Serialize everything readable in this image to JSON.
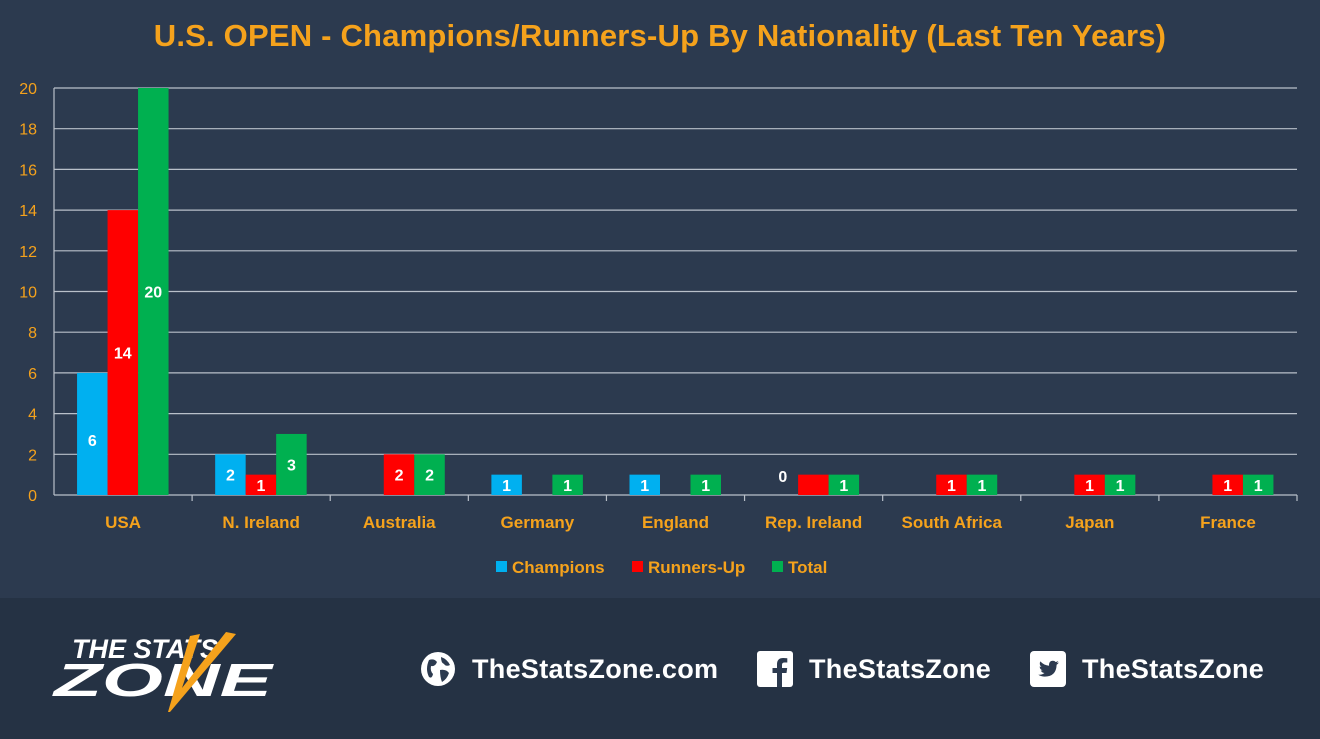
{
  "title": "U.S. OPEN - Champions/Runners-Up By Nationality (Last Ten Years)",
  "chart_data": {
    "type": "bar",
    "categories": [
      "USA",
      "N. Ireland",
      "Australia",
      "Germany",
      "England",
      "Rep. Ireland",
      "South Africa",
      "Japan",
      "France"
    ],
    "series": [
      {
        "name": "Champions",
        "color": "#00b0f0",
        "values": [
          6,
          2,
          null,
          1,
          1,
          0,
          null,
          null,
          null
        ],
        "labels": [
          "6",
          "2",
          "",
          "1",
          "1",
          "0",
          "",
          "",
          ""
        ]
      },
      {
        "name": "Runners-Up",
        "color": "#ff0000",
        "values": [
          14,
          1,
          2,
          null,
          null,
          1,
          1,
          1,
          1
        ],
        "labels": [
          "14",
          "1",
          "2",
          "",
          "",
          "",
          "1",
          "1",
          "1"
        ]
      },
      {
        "name": "Total",
        "color": "#00b050",
        "values": [
          20,
          3,
          2,
          1,
          1,
          1,
          1,
          1,
          1
        ],
        "labels": [
          "20",
          "3",
          "2",
          "1",
          "1",
          "1",
          "1",
          "1",
          "1"
        ]
      }
    ],
    "ylim": [
      0,
      20
    ],
    "yticks": [
      0,
      2,
      4,
      6,
      8,
      10,
      12,
      14,
      16,
      18,
      20
    ],
    "grid": true,
    "legend": "bottom",
    "axis_color": "#f5a21c"
  },
  "footer": {
    "logo_line1": "THE STATS",
    "logo_line2": "ZONE",
    "website": "TheStatsZone.com",
    "facebook": "TheStatsZone",
    "twitter": "TheStatsZone",
    "icons": [
      "globe-icon",
      "facebook-icon",
      "twitter-icon"
    ]
  }
}
